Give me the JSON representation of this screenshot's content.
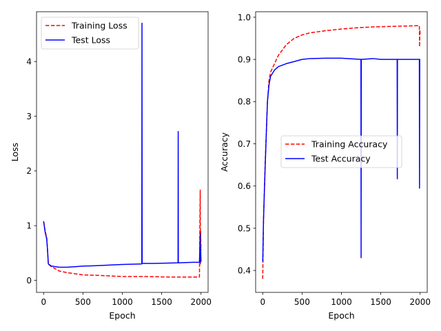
{
  "chart_data": [
    {
      "type": "line",
      "xlabel": "Epoch",
      "ylabel": "Loss",
      "xlim": [
        -90,
        2090
      ],
      "ylim": [
        -0.22,
        4.91
      ],
      "xticks": [
        0,
        500,
        1000,
        1500,
        2000
      ],
      "yticks": [
        0,
        1,
        2,
        3,
        4
      ],
      "legend_position": "top-left",
      "series": [
        {
          "name": "Training Loss",
          "color": "#ff0000",
          "dash": "dashed",
          "x": [
            0,
            20,
            40,
            50,
            60,
            80,
            100,
            150,
            200,
            300,
            400,
            500,
            700,
            1000,
            1300,
            1600,
            1800,
            1980,
            1990,
            1992,
            1995,
            2000
          ],
          "y": [
            1.08,
            0.9,
            0.78,
            0.55,
            0.3,
            0.27,
            0.25,
            0.21,
            0.17,
            0.14,
            0.12,
            0.1,
            0.09,
            0.07,
            0.07,
            0.06,
            0.06,
            0.06,
            1.65,
            0.3,
            0.9,
            0.55
          ]
        },
        {
          "name": "Test Loss",
          "color": "#0000ff",
          "dash": "solid",
          "x": [
            0,
            20,
            40,
            50,
            60,
            80,
            100,
            150,
            200,
            300,
            400,
            500,
            700,
            1000,
            1248,
            1250,
            1252,
            1400,
            1708,
            1710,
            1712,
            1900,
            1980,
            1990,
            1992,
            1995,
            2000
          ],
          "y": [
            1.08,
            0.88,
            0.75,
            0.55,
            0.3,
            0.28,
            0.26,
            0.25,
            0.24,
            0.24,
            0.25,
            0.26,
            0.27,
            0.29,
            0.3,
            4.7,
            0.31,
            0.31,
            0.32,
            2.72,
            0.32,
            0.33,
            0.33,
            0.86,
            0.33,
            0.6,
            0.34
          ]
        }
      ]
    },
    {
      "type": "line",
      "xlabel": "Epoch",
      "ylabel": "Accuracy",
      "xlim": [
        -90,
        2090
      ],
      "ylim": [
        0.348,
        1.013
      ],
      "xticks": [
        0,
        500,
        1000,
        1500,
        2000
      ],
      "yticks": [
        0.4,
        0.5,
        0.6,
        0.7,
        0.8,
        0.9,
        1.0
      ],
      "legend_position": "center-right",
      "series": [
        {
          "name": "Training Accuracy",
          "color": "#ff0000",
          "dash": "dashed",
          "x": [
            0,
            10,
            30,
            60,
            80,
            100,
            150,
            200,
            300,
            400,
            500,
            600,
            800,
            1000,
            1200,
            1400,
            1600,
            1800,
            1990,
            1993,
            1996,
            2000
          ],
          "y": [
            0.38,
            0.52,
            0.65,
            0.8,
            0.85,
            0.87,
            0.89,
            0.91,
            0.935,
            0.95,
            0.958,
            0.963,
            0.968,
            0.972,
            0.975,
            0.977,
            0.978,
            0.979,
            0.98,
            0.93,
            0.97,
            0.96
          ]
        },
        {
          "name": "Test Accuracy",
          "color": "#0000ff",
          "dash": "solid",
          "x": [
            0,
            10,
            30,
            60,
            80,
            100,
            150,
            200,
            300,
            400,
            500,
            600,
            800,
            1000,
            1248,
            1250,
            1252,
            1400,
            1500,
            1708,
            1710,
            1712,
            1900,
            1990,
            1992,
            1995,
            2000
          ],
          "y": [
            0.42,
            0.52,
            0.64,
            0.8,
            0.84,
            0.86,
            0.875,
            0.883,
            0.89,
            0.895,
            0.9,
            0.902,
            0.903,
            0.903,
            0.9,
            0.43,
            0.9,
            0.902,
            0.9,
            0.9,
            0.617,
            0.9,
            0.9,
            0.9,
            0.595,
            0.9,
            0.9
          ]
        }
      ]
    }
  ]
}
